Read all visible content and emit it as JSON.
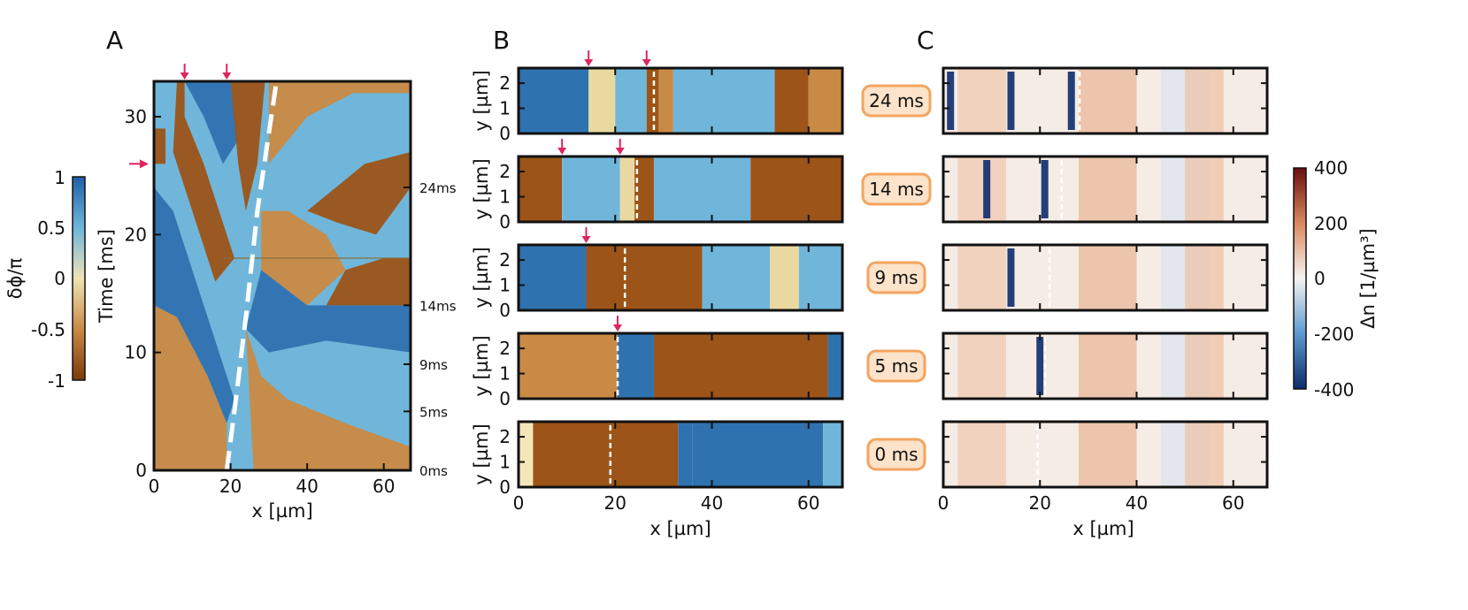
{
  "chart_data": [
    {
      "panel": "A",
      "type": "heatmap",
      "xlabel": "x [µm]",
      "ylabel": "Time [ms]",
      "xlim": [
        0,
        67
      ],
      "ylim": [
        0,
        33
      ],
      "xticks": [
        "0",
        "20",
        "40",
        "60"
      ],
      "yticks": [
        "0",
        "10",
        "20",
        "30"
      ],
      "time_markers": [
        {
          "t": 0,
          "label": "0ms"
        },
        {
          "t": 5,
          "label": "5ms"
        },
        {
          "t": 9,
          "label": "9ms"
        },
        {
          "t": 14,
          "label": "14ms"
        },
        {
          "t": 24,
          "label": "24ms"
        }
      ],
      "top_arrows_x": [
        8,
        19
      ],
      "left_arrow_t": 26,
      "trajectory": [
        [
          19,
          0
        ],
        [
          21,
          5
        ],
        [
          24,
          13
        ],
        [
          27,
          22
        ],
        [
          32,
          33
        ]
      ],
      "colorbar": {
        "label": "δϕ/π",
        "ticks": [
          "1",
          "0.5",
          "0",
          "-0.5",
          "-1"
        ],
        "range": [
          -1,
          1
        ]
      }
    },
    {
      "panel": "B",
      "type": "heatmap",
      "xlabel": "x [µm]",
      "ylabel": "y [µm]",
      "xlim": [
        0,
        67
      ],
      "ylim": [
        0,
        2.6
      ],
      "xticks": [
        "0",
        "20",
        "40",
        "60"
      ],
      "yticks": [
        "0",
        "1",
        "2"
      ],
      "rows": [
        {
          "time": "24 ms",
          "arrows_x": [
            14.5,
            26.5
          ],
          "dashed_x": 28,
          "bands": [
            [
              0,
              "blue"
            ],
            [
              14.5,
              "yellow"
            ],
            [
              20,
              "lightblue"
            ],
            [
              26.5,
              "brown"
            ],
            [
              29,
              "orange"
            ],
            [
              32,
              "lightblue"
            ],
            [
              53,
              "brown"
            ],
            [
              60,
              "orange"
            ]
          ]
        },
        {
          "time": "14 ms",
          "arrows_x": [
            9,
            21
          ],
          "dashed_x": 24.5,
          "bands": [
            [
              0,
              "brown"
            ],
            [
              9,
              "lightblue"
            ],
            [
              21,
              "yellow"
            ],
            [
              24,
              "brown"
            ],
            [
              28,
              "lightblue"
            ],
            [
              48,
              "brown"
            ]
          ]
        },
        {
          "time": "9 ms",
          "arrows_x": [
            14
          ],
          "dashed_x": 22,
          "bands": [
            [
              0,
              "blue"
            ],
            [
              14,
              "brown"
            ],
            [
              22,
              "brown"
            ],
            [
              38,
              "lightblue"
            ],
            [
              52,
              "yellow"
            ],
            [
              58,
              "lightblue"
            ]
          ]
        },
        {
          "time": "5 ms",
          "arrows_x": [
            20.5
          ],
          "dashed_x": 20.5,
          "bands": [
            [
              0,
              "orange"
            ],
            [
              20.5,
              "blue"
            ],
            [
              28,
              "brown"
            ],
            [
              64,
              "blue"
            ]
          ]
        },
        {
          "time": "0 ms",
          "arrows_x": [],
          "dashed_x": 19,
          "bands": [
            [
              0,
              "lightyellow"
            ],
            [
              3,
              "brown"
            ],
            [
              19,
              "brown"
            ],
            [
              33,
              "blue"
            ],
            [
              36,
              "blue"
            ],
            [
              63,
              "lightblue"
            ]
          ]
        }
      ]
    },
    {
      "panel": "C",
      "type": "heatmap",
      "xlabel": "x [µm]",
      "xlim": [
        0,
        67
      ],
      "xticks": [
        "0",
        "20",
        "40",
        "60"
      ],
      "rows": [
        {
          "time": "24 ms",
          "dark_lines_x": [
            1.5,
            14,
            26.5
          ],
          "dashed_x": 28.2
        },
        {
          "time": "14 ms",
          "dark_lines_x": [
            9,
            21
          ],
          "dashed_x": 24.5
        },
        {
          "time": "9 ms",
          "dark_lines_x": [
            14
          ],
          "dashed_x": 22
        },
        {
          "time": "5 ms",
          "dark_lines_x": [
            20
          ],
          "dashed_x": 21
        },
        {
          "time": "0 ms",
          "dark_lines_x": [],
          "dashed_x": 19.5
        }
      ],
      "colorbar": {
        "label": "Δn [1/µm³]",
        "ticks": [
          "400",
          "200",
          "0",
          "-200",
          "-400"
        ],
        "range": [
          -400,
          400
        ]
      }
    }
  ],
  "labels": {
    "panel_a": "A",
    "panel_b": "B",
    "panel_c": "C"
  },
  "colors": {
    "blue": "#2f72b0",
    "lightblue": "#6fb6da",
    "yellow": "#e9d9a0",
    "lightyellow": "#f3e7b8",
    "brown": "#9c5418",
    "orange": "#c98a45",
    "arrow": "#e0245e",
    "badge_fill": "#fde3c9",
    "badge_border": "#f4a460"
  }
}
